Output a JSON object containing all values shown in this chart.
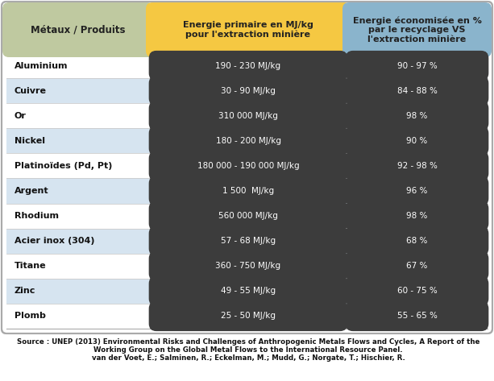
{
  "col_header": [
    "Métaux / Produits",
    "Energie primaire en MJ/kg\npour l'extraction minière",
    "Energie économisée en %\npar le recyclage VS\nl'extraction minière"
  ],
  "rows": [
    [
      "Aluminium",
      "190 - 230 MJ/kg",
      "90 - 97 %"
    ],
    [
      "Cuivre",
      "30 - 90 MJ/kg",
      "84 - 88 %"
    ],
    [
      "Or",
      "310 000 MJ/kg",
      "98 %"
    ],
    [
      "Nickel",
      "180 - 200 MJ/kg",
      "90 %"
    ],
    [
      "Platinoïdes (Pd, Pt)",
      "180 000 - 190 000 MJ/kg",
      "92 - 98 %"
    ],
    [
      "Argent",
      "1 500  MJ/kg",
      "96 %"
    ],
    [
      "Rhodium",
      "560 000 MJ/kg",
      "98 %"
    ],
    [
      "Acier inox (304)",
      "57 - 68 MJ/kg",
      "68 %"
    ],
    [
      "Titane",
      "360 - 750 MJ/kg",
      "67 %"
    ],
    [
      "Zinc",
      "49 - 55 MJ/kg",
      "60 - 75 %"
    ],
    [
      "Plomb",
      "25 - 50 MJ/kg",
      "55 - 65 %"
    ]
  ],
  "header_col1_color": "#bfc9a0",
  "header_col2_color": "#f5c842",
  "header_col3_color": "#8ab4cc",
  "row_bg_white": "#ffffff",
  "row_bg_blue": "#d6e4f0",
  "pill_color": "#3c3c3c",
  "pill_text_color": "#ffffff",
  "col1_text_color": "#111111",
  "outer_border_color": "#aaaaaa",
  "source_text_line1": "Source : UNEP (2013) Environmental Risks and Challenges of Anthropogenic Metals Flows and Cycles, A Report of the",
  "source_text_line2": "Working Group on the Global Metal Flows to the International Resource Panel.",
  "source_text_line3": "van der Voet, E.; Salminen, R.; Eckelman, M.; Mudd, G.; Norgate, T.; Hischier, R.",
  "figsize": [
    6.13,
    4.73
  ],
  "dpi": 100
}
